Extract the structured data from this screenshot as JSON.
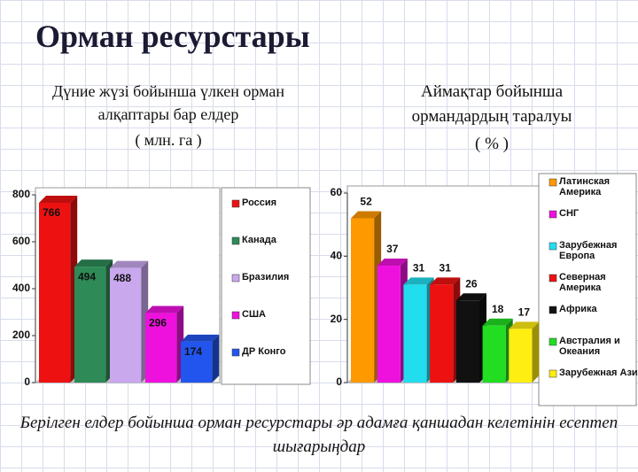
{
  "title": "Орман ресурстары",
  "caption": "Берілген елдер бойынша орман ресурстары әр адамға қаншадан келетінін есептеп шығарыңдар",
  "chart_data": [
    {
      "type": "bar",
      "title": "Дүние жүзі бойынша үлкен орман алқаптары бар елдер",
      "subtitle": "( млн. га )",
      "categories": [
        "Россия",
        "Канада",
        "Бразилия",
        "США",
        "ДР Конго"
      ],
      "values": [
        766,
        494,
        488,
        296,
        174
      ],
      "colors": [
        "#ee1111",
        "#2e8b57",
        "#c9a8ee",
        "#ee11dd",
        "#2255ee"
      ],
      "ylim": [
        0,
        800
      ],
      "yticks": [
        0,
        200,
        400,
        600,
        800
      ],
      "grid": false
    },
    {
      "type": "bar",
      "title": "Аймақтар бойынша ормандардың таралуы",
      "subtitle": "( % )",
      "categories": [
        "Латинская Америка",
        "СНГ",
        "Зарубежная Европа",
        "Северная Америка",
        "Африка",
        "Австралия и Океания",
        "Зарубежная Азия"
      ],
      "values": [
        52,
        37,
        31,
        31,
        26,
        18,
        17
      ],
      "colors": [
        "#ff9900",
        "#ee11dd",
        "#22ddee",
        "#ee1111",
        "#111111",
        "#22dd22",
        "#ffee11"
      ],
      "ylim": [
        0,
        60
      ],
      "yticks": [
        0,
        20,
        40,
        60
      ],
      "grid": false
    }
  ]
}
